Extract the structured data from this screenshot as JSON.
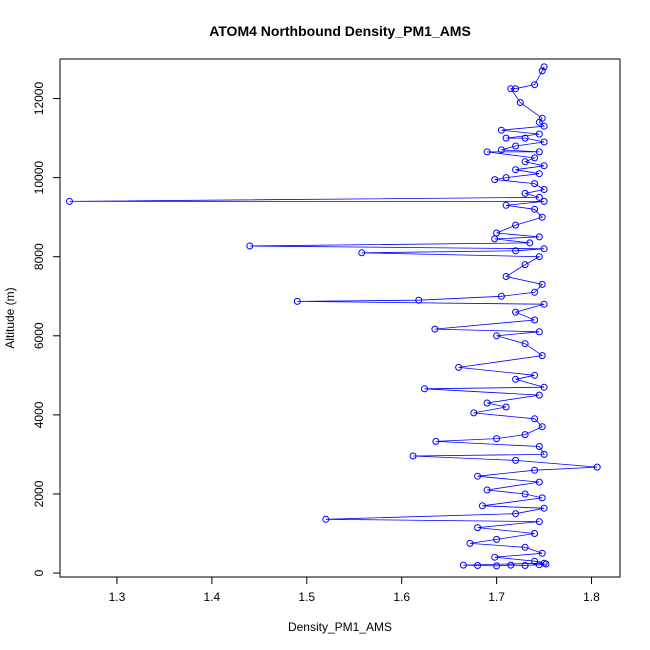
{
  "chart_data": {
    "type": "line",
    "title": "ATOM4 Northbound Density_PM1_AMS",
    "xlabel": "Density_PM1_AMS",
    "ylabel": "Altitude (m)",
    "xlim": [
      1.24,
      1.83
    ],
    "ylim": [
      -100,
      13000
    ],
    "x_ticks": [
      1.3,
      1.4,
      1.5,
      1.6,
      1.7,
      1.8
    ],
    "x_tick_labels": [
      "1.3",
      "1.4",
      "1.5",
      "1.6",
      "1.7",
      "1.8"
    ],
    "y_ticks": [
      0,
      2000,
      4000,
      6000,
      8000,
      10000,
      12000
    ],
    "y_tick_labels": [
      "0",
      "2000",
      "4000",
      "6000",
      "8000",
      "10000",
      "12000"
    ],
    "grid": false,
    "legend": "none",
    "series": [
      {
        "color": "#0000ff",
        "marker": "open-circle",
        "points": [
          [
            1.75,
            12800
          ],
          [
            1.748,
            12700
          ],
          [
            1.74,
            12350
          ],
          [
            1.72,
            12250
          ],
          [
            1.715,
            12250
          ],
          [
            1.725,
            11900
          ],
          [
            1.748,
            11500
          ],
          [
            1.745,
            11400
          ],
          [
            1.75,
            11300
          ],
          [
            1.705,
            11200
          ],
          [
            1.745,
            11100
          ],
          [
            1.71,
            11000
          ],
          [
            1.73,
            11000
          ],
          [
            1.75,
            10900
          ],
          [
            1.72,
            10800
          ],
          [
            1.705,
            10700
          ],
          [
            1.745,
            10650
          ],
          [
            1.69,
            10650
          ],
          [
            1.74,
            10500
          ],
          [
            1.73,
            10400
          ],
          [
            1.75,
            10300
          ],
          [
            1.72,
            10200
          ],
          [
            1.745,
            10100
          ],
          [
            1.71,
            10000
          ],
          [
            1.698,
            9950
          ],
          [
            1.74,
            9850
          ],
          [
            1.75,
            9700
          ],
          [
            1.73,
            9600
          ],
          [
            1.745,
            9500
          ],
          [
            1.25,
            9400
          ],
          [
            1.75,
            9400
          ],
          [
            1.71,
            9300
          ],
          [
            1.74,
            9200
          ],
          [
            1.748,
            9000
          ],
          [
            1.72,
            8800
          ],
          [
            1.7,
            8600
          ],
          [
            1.745,
            8500
          ],
          [
            1.698,
            8450
          ],
          [
            1.735,
            8350
          ],
          [
            1.44,
            8270
          ],
          [
            1.75,
            8200
          ],
          [
            1.72,
            8150
          ],
          [
            1.558,
            8100
          ],
          [
            1.745,
            8000
          ],
          [
            1.73,
            7800
          ],
          [
            1.71,
            7500
          ],
          [
            1.748,
            7300
          ],
          [
            1.74,
            7100
          ],
          [
            1.705,
            7000
          ],
          [
            1.618,
            6900
          ],
          [
            1.49,
            6870
          ],
          [
            1.75,
            6800
          ],
          [
            1.72,
            6600
          ],
          [
            1.74,
            6400
          ],
          [
            1.635,
            6170
          ],
          [
            1.745,
            6100
          ],
          [
            1.7,
            6000
          ],
          [
            1.73,
            5800
          ],
          [
            1.748,
            5500
          ],
          [
            1.66,
            5200
          ],
          [
            1.74,
            5000
          ],
          [
            1.72,
            4900
          ],
          [
            1.75,
            4700
          ],
          [
            1.624,
            4660
          ],
          [
            1.745,
            4500
          ],
          [
            1.69,
            4300
          ],
          [
            1.71,
            4200
          ],
          [
            1.676,
            4050
          ],
          [
            1.74,
            3900
          ],
          [
            1.748,
            3700
          ],
          [
            1.73,
            3500
          ],
          [
            1.7,
            3400
          ],
          [
            1.636,
            3330
          ],
          [
            1.745,
            3200
          ],
          [
            1.75,
            3000
          ],
          [
            1.612,
            2960
          ],
          [
            1.72,
            2850
          ],
          [
            1.806,
            2680
          ],
          [
            1.74,
            2600
          ],
          [
            1.68,
            2450
          ],
          [
            1.745,
            2300
          ],
          [
            1.69,
            2100
          ],
          [
            1.73,
            2000
          ],
          [
            1.748,
            1900
          ],
          [
            1.685,
            1700
          ],
          [
            1.75,
            1640
          ],
          [
            1.72,
            1500
          ],
          [
            1.52,
            1360
          ],
          [
            1.745,
            1300
          ],
          [
            1.68,
            1150
          ],
          [
            1.74,
            1000
          ],
          [
            1.7,
            850
          ],
          [
            1.672,
            750
          ],
          [
            1.73,
            650
          ],
          [
            1.748,
            500
          ],
          [
            1.698,
            400
          ],
          [
            1.74,
            300
          ],
          [
            1.75,
            250
          ],
          [
            1.665,
            200
          ],
          [
            1.68,
            190
          ],
          [
            1.7,
            180
          ],
          [
            1.715,
            200
          ],
          [
            1.73,
            190
          ],
          [
            1.745,
            210
          ],
          [
            1.752,
            230
          ]
        ]
      }
    ]
  }
}
